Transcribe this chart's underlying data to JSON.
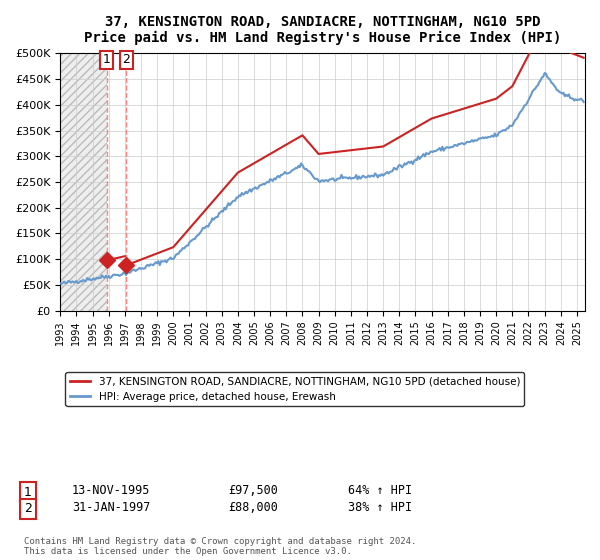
{
  "title": "37, KENSINGTON ROAD, SANDIACRE, NOTTINGHAM, NG10 5PD",
  "subtitle": "Price paid vs. HM Land Registry's House Price Index (HPI)",
  "legend_line1": "37, KENSINGTON ROAD, SANDIACRE, NOTTINGHAM, NG10 5PD (detached house)",
  "legend_line2": "HPI: Average price, detached house, Erewash",
  "sale1_date": "13-NOV-1995",
  "sale1_price": 97500,
  "sale1_hpi": "64% ↑ HPI",
  "sale2_date": "31-JAN-1997",
  "sale2_price": 88000,
  "sale2_hpi": "38% ↑ HPI",
  "footnote": "Contains HM Land Registry data © Crown copyright and database right 2024.\nThis data is licensed under the Open Government Licence v3.0.",
  "hpi_color": "#6699cc",
  "price_color": "#cc2222",
  "background_hatch_color": "#dddddd",
  "sale1_x": 1995.87,
  "sale2_x": 1997.08,
  "xmin": 1993.0,
  "xmax": 2025.5,
  "ymin": 0,
  "ymax": 500000
}
